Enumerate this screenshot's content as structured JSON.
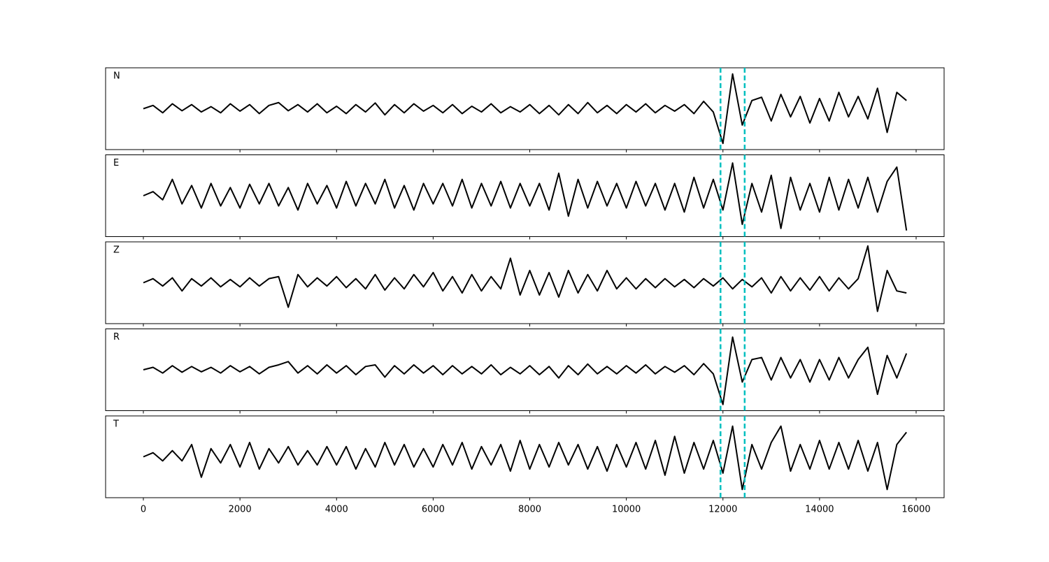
{
  "chart_data": {
    "type": "line",
    "x": [
      0,
      200,
      400,
      600,
      800,
      1000,
      1200,
      1400,
      1600,
      1800,
      2000,
      2200,
      2400,
      2600,
      2800,
      3000,
      3200,
      3400,
      3600,
      3800,
      4000,
      4200,
      4400,
      4600,
      4800,
      5000,
      5200,
      5400,
      5600,
      5800,
      6000,
      6200,
      6400,
      6600,
      6800,
      7000,
      7200,
      7400,
      7600,
      7800,
      8000,
      8200,
      8400,
      8600,
      8800,
      9000,
      9200,
      9400,
      9600,
      9800,
      10000,
      10200,
      10400,
      10600,
      10800,
      11000,
      11200,
      11400,
      11600,
      11800,
      12000,
      12200,
      12400,
      12600,
      12800,
      13000,
      13200,
      13400,
      13600,
      13800,
      14000,
      14200,
      14400,
      14600,
      14800,
      15000,
      15200,
      15400,
      15600,
      15800
    ],
    "xlim": [
      -782,
      16579
    ],
    "xticks": [
      0,
      2000,
      4000,
      6000,
      8000,
      10000,
      12000,
      14000,
      16000
    ],
    "ylim": [
      -1,
      1
    ],
    "series": [
      {
        "name": "N",
        "color": "#000000",
        "values": [
          0.0,
          0.08,
          -0.1,
          0.12,
          -0.05,
          0.1,
          -0.08,
          0.05,
          -0.1,
          0.12,
          -0.06,
          0.1,
          -0.12,
          0.08,
          0.15,
          -0.05,
          0.1,
          -0.08,
          0.12,
          -0.1,
          0.06,
          -0.12,
          0.1,
          -0.08,
          0.14,
          -0.15,
          0.1,
          -0.1,
          0.12,
          -0.06,
          0.08,
          -0.1,
          0.1,
          -0.12,
          0.06,
          -0.08,
          0.12,
          -0.1,
          0.05,
          -0.08,
          0.1,
          -0.12,
          0.08,
          -0.15,
          0.1,
          -0.12,
          0.15,
          -0.1,
          0.08,
          -0.12,
          0.1,
          -0.08,
          0.12,
          -0.1,
          0.08,
          -0.06,
          0.1,
          -0.12,
          0.18,
          -0.08,
          -0.85,
          0.85,
          -0.4,
          0.2,
          0.28,
          -0.3,
          0.35,
          -0.2,
          0.3,
          -0.35,
          0.25,
          -0.3,
          0.4,
          -0.2,
          0.3,
          -0.25,
          0.5,
          -0.58,
          0.4,
          0.2
        ]
      },
      {
        "name": "E",
        "color": "#000000",
        "values": [
          0.0,
          0.1,
          -0.1,
          0.4,
          -0.2,
          0.25,
          -0.3,
          0.3,
          -0.25,
          0.2,
          -0.3,
          0.28,
          -0.2,
          0.3,
          -0.25,
          0.2,
          -0.35,
          0.3,
          -0.2,
          0.25,
          -0.3,
          0.35,
          -0.25,
          0.3,
          -0.2,
          0.4,
          -0.3,
          0.25,
          -0.35,
          0.3,
          -0.2,
          0.3,
          -0.25,
          0.4,
          -0.3,
          0.3,
          -0.25,
          0.35,
          -0.3,
          0.3,
          -0.25,
          0.3,
          -0.35,
          0.55,
          -0.5,
          0.4,
          -0.3,
          0.35,
          -0.25,
          0.3,
          -0.3,
          0.35,
          -0.25,
          0.3,
          -0.35,
          0.3,
          -0.4,
          0.45,
          -0.3,
          0.4,
          -0.35,
          0.8,
          -0.7,
          0.3,
          -0.4,
          0.5,
          -0.8,
          0.45,
          -0.35,
          0.3,
          -0.4,
          0.45,
          -0.35,
          0.4,
          -0.3,
          0.45,
          -0.4,
          0.35,
          0.7,
          -0.85
        ]
      },
      {
        "name": "Z",
        "color": "#000000",
        "values": [
          0.0,
          0.1,
          -0.08,
          0.12,
          -0.2,
          0.1,
          -0.08,
          0.12,
          -0.1,
          0.08,
          -0.1,
          0.12,
          -0.08,
          0.1,
          0.15,
          -0.6,
          0.2,
          -0.1,
          0.12,
          -0.08,
          0.15,
          -0.12,
          0.1,
          -0.15,
          0.2,
          -0.18,
          0.12,
          -0.15,
          0.2,
          -0.1,
          0.25,
          -0.2,
          0.15,
          -0.25,
          0.2,
          -0.2,
          0.15,
          -0.15,
          0.6,
          -0.3,
          0.3,
          -0.3,
          0.25,
          -0.35,
          0.3,
          -0.25,
          0.2,
          -0.2,
          0.3,
          -0.15,
          0.12,
          -0.15,
          0.1,
          -0.12,
          0.1,
          -0.1,
          0.08,
          -0.12,
          0.1,
          -0.08,
          0.12,
          -0.15,
          0.08,
          -0.1,
          0.12,
          -0.25,
          0.15,
          -0.2,
          0.12,
          -0.18,
          0.15,
          -0.2,
          0.12,
          -0.15,
          0.1,
          0.9,
          -0.7,
          0.3,
          -0.2,
          -0.25
        ]
      },
      {
        "name": "R",
        "color": "#000000",
        "values": [
          0.0,
          0.06,
          -0.08,
          0.1,
          -0.06,
          0.08,
          -0.05,
          0.06,
          -0.08,
          0.1,
          -0.05,
          0.08,
          -0.1,
          0.06,
          0.12,
          0.2,
          -0.08,
          0.1,
          -0.1,
          0.12,
          -0.08,
          0.1,
          -0.12,
          0.08,
          0.12,
          -0.18,
          0.1,
          -0.1,
          0.12,
          -0.08,
          0.1,
          -0.12,
          0.1,
          -0.1,
          0.08,
          -0.1,
          0.12,
          -0.12,
          0.06,
          -0.1,
          0.1,
          -0.12,
          0.08,
          -0.2,
          0.1,
          -0.12,
          0.14,
          -0.1,
          0.08,
          -0.1,
          0.1,
          -0.08,
          0.12,
          -0.1,
          0.08,
          -0.06,
          0.1,
          -0.12,
          0.15,
          -0.1,
          -0.85,
          0.8,
          -0.3,
          0.25,
          0.3,
          -0.25,
          0.3,
          -0.2,
          0.25,
          -0.3,
          0.25,
          -0.25,
          0.3,
          -0.2,
          0.25,
          0.55,
          -0.6,
          0.35,
          -0.2,
          0.4
        ]
      },
      {
        "name": "T",
        "color": "#000000",
        "values": [
          0.0,
          0.1,
          -0.1,
          0.15,
          -0.1,
          0.3,
          -0.5,
          0.2,
          -0.15,
          0.3,
          -0.25,
          0.35,
          -0.3,
          0.2,
          -0.15,
          0.25,
          -0.2,
          0.15,
          -0.2,
          0.25,
          -0.2,
          0.25,
          -0.3,
          0.2,
          -0.25,
          0.35,
          -0.2,
          0.3,
          -0.25,
          0.2,
          -0.25,
          0.3,
          -0.2,
          0.35,
          -0.3,
          0.25,
          -0.2,
          0.3,
          -0.35,
          0.4,
          -0.3,
          0.3,
          -0.25,
          0.35,
          -0.2,
          0.3,
          -0.3,
          0.25,
          -0.35,
          0.3,
          -0.25,
          0.35,
          -0.3,
          0.4,
          -0.45,
          0.5,
          -0.4,
          0.35,
          -0.3,
          0.4,
          -0.4,
          0.75,
          -0.8,
          0.3,
          -0.3,
          0.35,
          0.75,
          -0.35,
          0.3,
          -0.3,
          0.4,
          -0.3,
          0.35,
          -0.3,
          0.4,
          -0.35,
          0.35,
          -0.8,
          0.3,
          0.6
        ]
      }
    ],
    "vlines": {
      "x": [
        11950,
        12450
      ],
      "color": "#00bfbf"
    }
  }
}
